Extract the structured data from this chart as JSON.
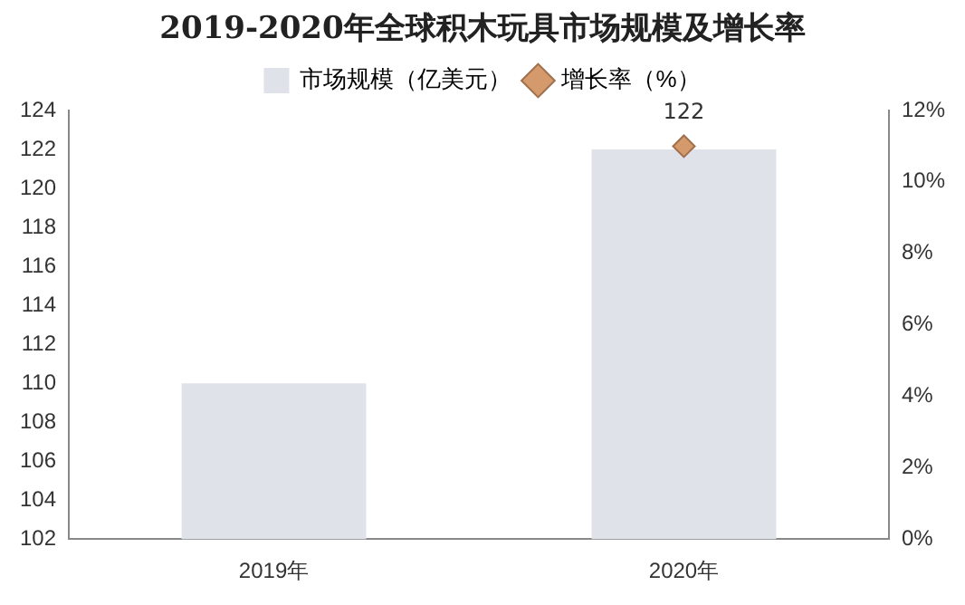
{
  "chart_data": {
    "type": "bar",
    "title": "2019-2020年全球积木玩具市场规模及增长率",
    "categories": [
      "2019年",
      "2020年"
    ],
    "series": [
      {
        "name": "市场规模（亿美元）",
        "color": "#e0e2ea",
        "values": [
          110,
          122
        ],
        "value_labels": [
          null,
          "122"
        ]
      },
      {
        "name": "增长率（%）",
        "type": "line",
        "axis": "y2",
        "color": "#d49a6c",
        "marker": "diamond",
        "values": [
          null,
          11
        ]
      }
    ],
    "ylim": [
      102,
      124
    ],
    "yticks": [
      102,
      104,
      106,
      108,
      110,
      112,
      114,
      116,
      118,
      120,
      122,
      124
    ],
    "y2lim": [
      0,
      12
    ],
    "y2ticks": [
      {
        "value": 0,
        "label": "0%"
      },
      {
        "value": 2,
        "label": "2%"
      },
      {
        "value": 4,
        "label": "4%"
      },
      {
        "value": 6,
        "label": "6%"
      },
      {
        "value": 8,
        "label": "8%"
      },
      {
        "value": 10,
        "label": "10%"
      },
      {
        "value": 12,
        "label": "12%"
      }
    ],
    "grid": false,
    "legend": "top"
  }
}
